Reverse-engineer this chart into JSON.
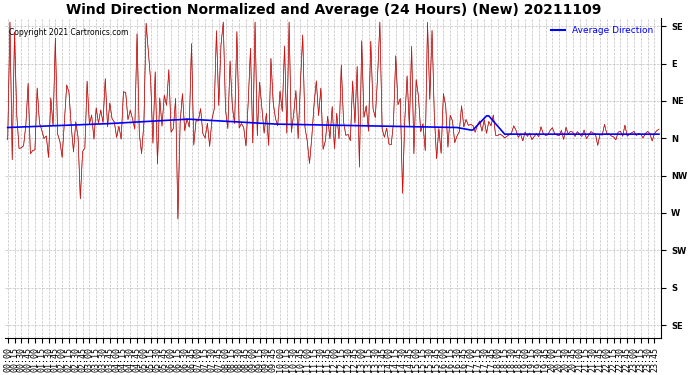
{
  "title": "Wind Direction Normalized and Average (24 Hours) (New) 20211109",
  "copyright_text": "Copyright 2021 Cartronics.com",
  "legend_label": "Average Direction",
  "legend_color": "blue",
  "ytick_labels": [
    "SE",
    "E",
    "NE",
    "N",
    "NW",
    "W",
    "SW",
    "S",
    "SE"
  ],
  "ytick_values": [
    0,
    45,
    90,
    135,
    180,
    225,
    270,
    315,
    360
  ],
  "ymin": -10,
  "ymax": 375,
  "background_color": "#ffffff",
  "grid_color": "#b0b0b0",
  "title_fontsize": 10,
  "tick_label_fontsize": 6,
  "red_line_color": "#ff0000",
  "blue_line_color": "#0000ff",
  "black_line_color": "#000000",
  "n_points": 288
}
